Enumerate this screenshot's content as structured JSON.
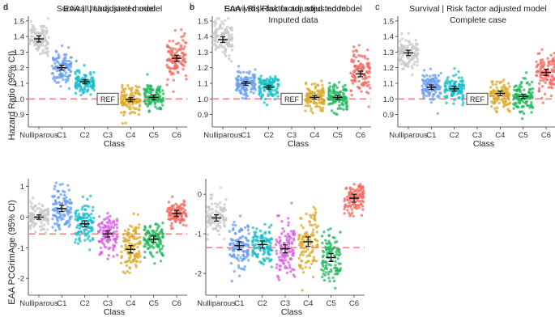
{
  "figure": {
    "y_label_top": "Hazard Ratio (95% CI)",
    "y_label_bottom": "EAA PCGrimAge (95% CI)",
    "ref_label": "REF"
  },
  "chart_data": [
    {
      "panel": "a",
      "type": "scatter",
      "title": "Survival  | Unadjusted model",
      "title_line2": "",
      "xlabel": "Class",
      "ylabel": "Hazard Ratio (95% CI)",
      "categories": [
        "Nulliparous",
        "C1",
        "C2",
        "C3",
        "C4",
        "C5",
        "C6"
      ],
      "ylim": [
        0.82,
        1.52
      ],
      "yticks": [
        0.9,
        1.0,
        1.1,
        1.2,
        1.3,
        1.4,
        1.5
      ],
      "ref_line": 1.0,
      "ref_category": "C3",
      "points": [
        {
          "category": "Nulliparous",
          "estimate": 1.385,
          "ci": [
            1.365,
            1.405
          ],
          "spread": 0.055,
          "color": "#c8c8c8"
        },
        {
          "category": "C1",
          "estimate": 1.2,
          "ci": [
            1.185,
            1.215
          ],
          "spread": 0.055,
          "color": "#6a9ff0"
        },
        {
          "category": "C2",
          "estimate": 1.11,
          "ci": [
            1.097,
            1.123
          ],
          "spread": 0.035,
          "color": "#17bec9"
        },
        {
          "category": "C4",
          "estimate": 0.995,
          "ci": [
            0.982,
            1.008
          ],
          "spread": 0.045,
          "color": "#dbaa29"
        },
        {
          "category": "C5",
          "estimate": 1.01,
          "ci": [
            0.995,
            1.025
          ],
          "spread": 0.045,
          "color": "#20b85c"
        },
        {
          "category": "C6",
          "estimate": 1.26,
          "ci": [
            1.24,
            1.28
          ],
          "spread": 0.075,
          "color": "#f26b60"
        }
      ]
    },
    {
      "panel": "b",
      "type": "scatter",
      "title": "Survival | Risk factor adjusted model",
      "title_line2": "Imputed data",
      "xlabel": "Class",
      "ylabel": "",
      "categories": [
        "Nulliparous",
        "C1",
        "C2",
        "C3",
        "C4",
        "C5",
        "C6"
      ],
      "ylim": [
        0.82,
        1.52
      ],
      "yticks": [
        0.9,
        1.0,
        1.1,
        1.2,
        1.3,
        1.4,
        1.5
      ],
      "ref_line": 1.0,
      "ref_category": "C3",
      "points": [
        {
          "category": "Nulliparous",
          "estimate": 1.38,
          "ci": [
            1.362,
            1.398
          ],
          "spread": 0.06,
          "color": "#c8c8c8"
        },
        {
          "category": "C1",
          "estimate": 1.1,
          "ci": [
            1.088,
            1.112
          ],
          "spread": 0.045,
          "color": "#6a9ff0"
        },
        {
          "category": "C2",
          "estimate": 1.075,
          "ci": [
            1.063,
            1.087
          ],
          "spread": 0.04,
          "color": "#17bec9"
        },
        {
          "category": "C4",
          "estimate": 1.01,
          "ci": [
            0.998,
            1.022
          ],
          "spread": 0.045,
          "color": "#dbaa29"
        },
        {
          "category": "C5",
          "estimate": 1.01,
          "ci": [
            0.997,
            1.023
          ],
          "spread": 0.045,
          "color": "#20b85c"
        },
        {
          "category": "C6",
          "estimate": 1.16,
          "ci": [
            1.142,
            1.178
          ],
          "spread": 0.07,
          "color": "#f26b60"
        }
      ]
    },
    {
      "panel": "c",
      "type": "scatter",
      "title": "Survival | Risk factor adjusted model",
      "title_line2": "Complete case",
      "xlabel": "Class",
      "ylabel": "",
      "categories": [
        "Nulliparous",
        "C1",
        "C2",
        "C3",
        "C4",
        "C5",
        "C6"
      ],
      "ylim": [
        0.82,
        1.52
      ],
      "yticks": [
        0.9,
        1.0,
        1.1,
        1.2,
        1.3,
        1.4,
        1.5
      ],
      "ref_line": 1.0,
      "ref_category": "C3",
      "points": [
        {
          "category": "Nulliparous",
          "estimate": 1.295,
          "ci": [
            1.278,
            1.312
          ],
          "spread": 0.05,
          "color": "#c8c8c8"
        },
        {
          "category": "C1",
          "estimate": 1.075,
          "ci": [
            1.06,
            1.09
          ],
          "spread": 0.045,
          "color": "#6a9ff0"
        },
        {
          "category": "C2",
          "estimate": 1.065,
          "ci": [
            1.05,
            1.08
          ],
          "spread": 0.04,
          "color": "#17bec9"
        },
        {
          "category": "C4",
          "estimate": 1.035,
          "ci": [
            1.02,
            1.05
          ],
          "spread": 0.045,
          "color": "#dbaa29"
        },
        {
          "category": "C5",
          "estimate": 1.015,
          "ci": [
            1.002,
            1.028
          ],
          "spread": 0.045,
          "color": "#20b85c"
        },
        {
          "category": "C6",
          "estimate": 1.17,
          "ci": [
            1.15,
            1.19
          ],
          "spread": 0.065,
          "color": "#f26b60"
        }
      ]
    },
    {
      "panel": "d",
      "type": "scatter",
      "title": "EAA | Unadjusted model",
      "title_line2": "",
      "xlabel": "Class",
      "ylabel": "EAA PCGrimAge (95% CI)",
      "categories": [
        "Nulliparous",
        "C1",
        "C2",
        "C3",
        "C4",
        "C5",
        "C6"
      ],
      "ylim": [
        -2.55,
        1.2
      ],
      "yticks": [
        -2,
        -1,
        0,
        1
      ],
      "ref_line": -0.55,
      "ref_category": null,
      "points": [
        {
          "category": "Nulliparous",
          "estimate": 0.0,
          "ci": [
            -0.07,
            0.07
          ],
          "spread": 0.22,
          "color": "#c8c8c8"
        },
        {
          "category": "C1",
          "estimate": 0.28,
          "ci": [
            0.18,
            0.38
          ],
          "spread": 0.38,
          "color": "#6a9ff0"
        },
        {
          "category": "C2",
          "estimate": -0.22,
          "ci": [
            -0.32,
            -0.12
          ],
          "spread": 0.32,
          "color": "#17bec9"
        },
        {
          "category": "C3",
          "estimate": -0.55,
          "ci": [
            -0.65,
            -0.45
          ],
          "spread": 0.32,
          "color": "#d75de0"
        },
        {
          "category": "C4",
          "estimate": -1.05,
          "ci": [
            -1.17,
            -0.93
          ],
          "spread": 0.45,
          "color": "#dbaa29"
        },
        {
          "category": "C5",
          "estimate": -0.72,
          "ci": [
            -0.82,
            -0.62
          ],
          "spread": 0.3,
          "color": "#20b85c"
        },
        {
          "category": "C6",
          "estimate": 0.12,
          "ci": [
            0.02,
            0.22
          ],
          "spread": 0.2,
          "color": "#f26b60"
        }
      ]
    },
    {
      "panel": "e",
      "type": "scatter",
      "title": "EAA | Risk factor adjusted model",
      "title_line2": "",
      "xlabel": "Class",
      "ylabel": "",
      "categories": [
        "Nulliparous",
        "C1",
        "C2",
        "C3",
        "C4",
        "C5",
        "C6"
      ],
      "ylim": [
        -2.55,
        0.35
      ],
      "yticks": [
        -2,
        -1,
        0
      ],
      "ref_line": -1.35,
      "ref_category": null,
      "points": [
        {
          "category": "Nulliparous",
          "estimate": -0.6,
          "ci": [
            -0.68,
            -0.52
          ],
          "spread": 0.2,
          "color": "#c8c8c8"
        },
        {
          "category": "C1",
          "estimate": -1.3,
          "ci": [
            -1.4,
            -1.2
          ],
          "spread": 0.3,
          "color": "#6a9ff0"
        },
        {
          "category": "C2",
          "estimate": -1.27,
          "ci": [
            -1.36,
            -1.18
          ],
          "spread": 0.25,
          "color": "#17bec9"
        },
        {
          "category": "C3",
          "estimate": -1.38,
          "ci": [
            -1.48,
            -1.28
          ],
          "spread": 0.35,
          "color": "#d75de0"
        },
        {
          "category": "C4",
          "estimate": -1.2,
          "ci": [
            -1.32,
            -1.08
          ],
          "spread": 0.4,
          "color": "#dbaa29"
        },
        {
          "category": "C5",
          "estimate": -1.6,
          "ci": [
            -1.7,
            -1.5
          ],
          "spread": 0.3,
          "color": "#20b85c"
        },
        {
          "category": "C6",
          "estimate": -0.1,
          "ci": [
            -0.2,
            0.0
          ],
          "spread": 0.2,
          "color": "#f26b60"
        }
      ]
    }
  ]
}
